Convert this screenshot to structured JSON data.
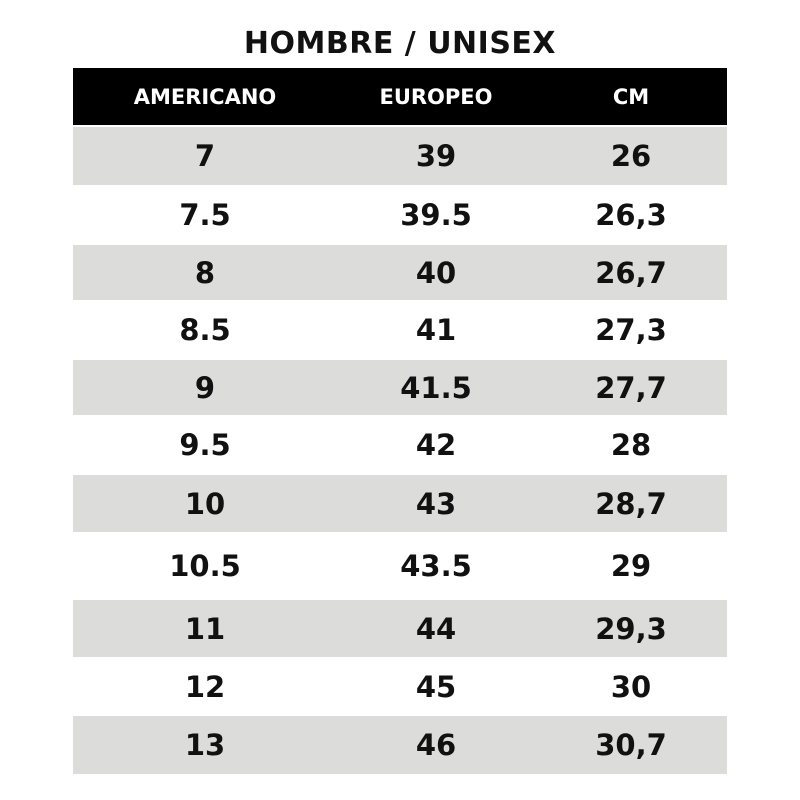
{
  "title": "HOMBRE / UNISEX",
  "headers": [
    "AMERICANO",
    "EUROPEO",
    "CM"
  ],
  "colors": {
    "header_bg": "#000000",
    "stripe": "#dcdddb"
  },
  "rows": [
    [
      "7",
      "39",
      "26"
    ],
    [
      "7.5",
      "39.5",
      "26,3"
    ],
    [
      "8",
      "40",
      "26,7"
    ],
    [
      "8.5",
      "41",
      "27,3"
    ],
    [
      "9",
      "41.5",
      "27,7"
    ],
    [
      "9.5",
      "42",
      "28"
    ],
    [
      "10",
      "43",
      "28,7"
    ],
    [
      "10.5",
      "43.5",
      "29"
    ],
    [
      "11",
      "44",
      "29,3"
    ],
    [
      "12",
      "45",
      "30"
    ],
    [
      "13",
      "46",
      "30,7"
    ]
  ]
}
